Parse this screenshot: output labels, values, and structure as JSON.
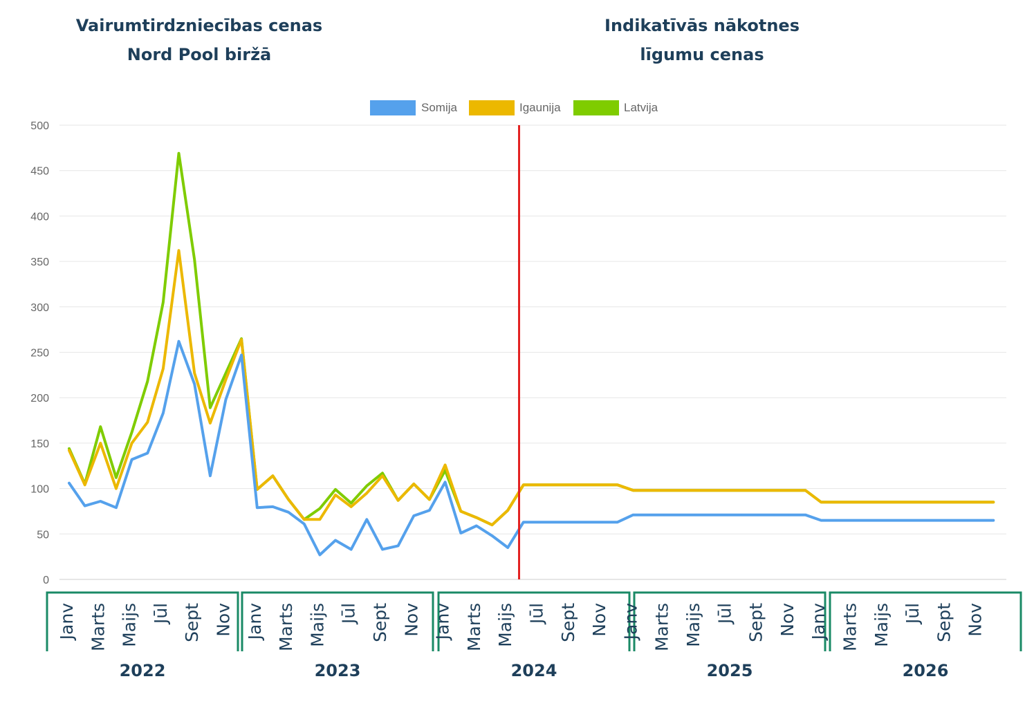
{
  "headings": {
    "left": [
      "Vairumtirdzniecības cenas",
      "Nord Pool biržā"
    ],
    "right": [
      "Indikatīvās nākotnes",
      "līgumu cenas"
    ]
  },
  "chart_data": {
    "type": "line",
    "ylim": [
      0,
      500
    ],
    "yticks": [
      0,
      50,
      100,
      150,
      200,
      250,
      300,
      350,
      400,
      450,
      500
    ],
    "grid": true,
    "legend_position": "top-center",
    "years": [
      "2022",
      "2023",
      "2024",
      "2025",
      "2026"
    ],
    "month_labels": [
      "Janv",
      "Marts",
      "Maijs",
      "Jūl",
      "Sept",
      "Nov"
    ],
    "divider_after_index": 28,
    "colors": {
      "divider": "#e32222",
      "bracket": "#1a8a66"
    },
    "series": [
      {
        "name": "Somija",
        "color": "#55a1ec",
        "values": [
          106,
          81,
          86,
          79,
          132,
          139,
          183,
          262,
          215,
          114,
          198,
          247,
          79,
          80,
          74,
          61,
          27,
          43,
          33,
          66,
          33,
          37,
          70,
          76,
          107,
          51,
          59,
          48,
          35,
          63,
          63,
          63,
          63,
          63,
          63,
          63,
          71,
          71,
          71,
          71,
          71,
          71,
          71,
          71,
          71,
          71,
          71,
          71,
          65,
          65,
          65,
          65,
          65,
          65,
          65,
          65,
          65,
          65,
          65,
          65
        ]
      },
      {
        "name": "Igaunija",
        "color": "#ecb800",
        "values": [
          142,
          104,
          150,
          100,
          150,
          173,
          232,
          362,
          227,
          172,
          220,
          264,
          99,
          114,
          88,
          66,
          66,
          93,
          80,
          95,
          114,
          87,
          105,
          88,
          126,
          75,
          68,
          60,
          76,
          104,
          104,
          104,
          104,
          104,
          104,
          104,
          98,
          98,
          98,
          98,
          98,
          98,
          98,
          98,
          98,
          98,
          98,
          98,
          85,
          85,
          85,
          85,
          85,
          85,
          85,
          85,
          85,
          85,
          85,
          85
        ]
      },
      {
        "name": "Latvija",
        "color": "#7fcc00",
        "values": [
          144,
          105,
          168,
          112,
          162,
          218,
          305,
          469,
          352,
          189,
          227,
          265,
          99,
          114,
          88,
          66,
          78,
          99,
          84,
          103,
          117,
          87,
          105,
          88,
          120,
          75,
          68,
          60,
          76,
          104,
          104,
          104,
          104,
          104,
          104,
          104,
          98,
          98,
          98,
          98,
          98,
          98,
          98,
          98,
          98,
          98,
          98,
          98,
          85,
          85,
          85,
          85,
          85,
          85,
          85,
          85,
          85,
          85,
          85,
          85
        ]
      }
    ]
  }
}
